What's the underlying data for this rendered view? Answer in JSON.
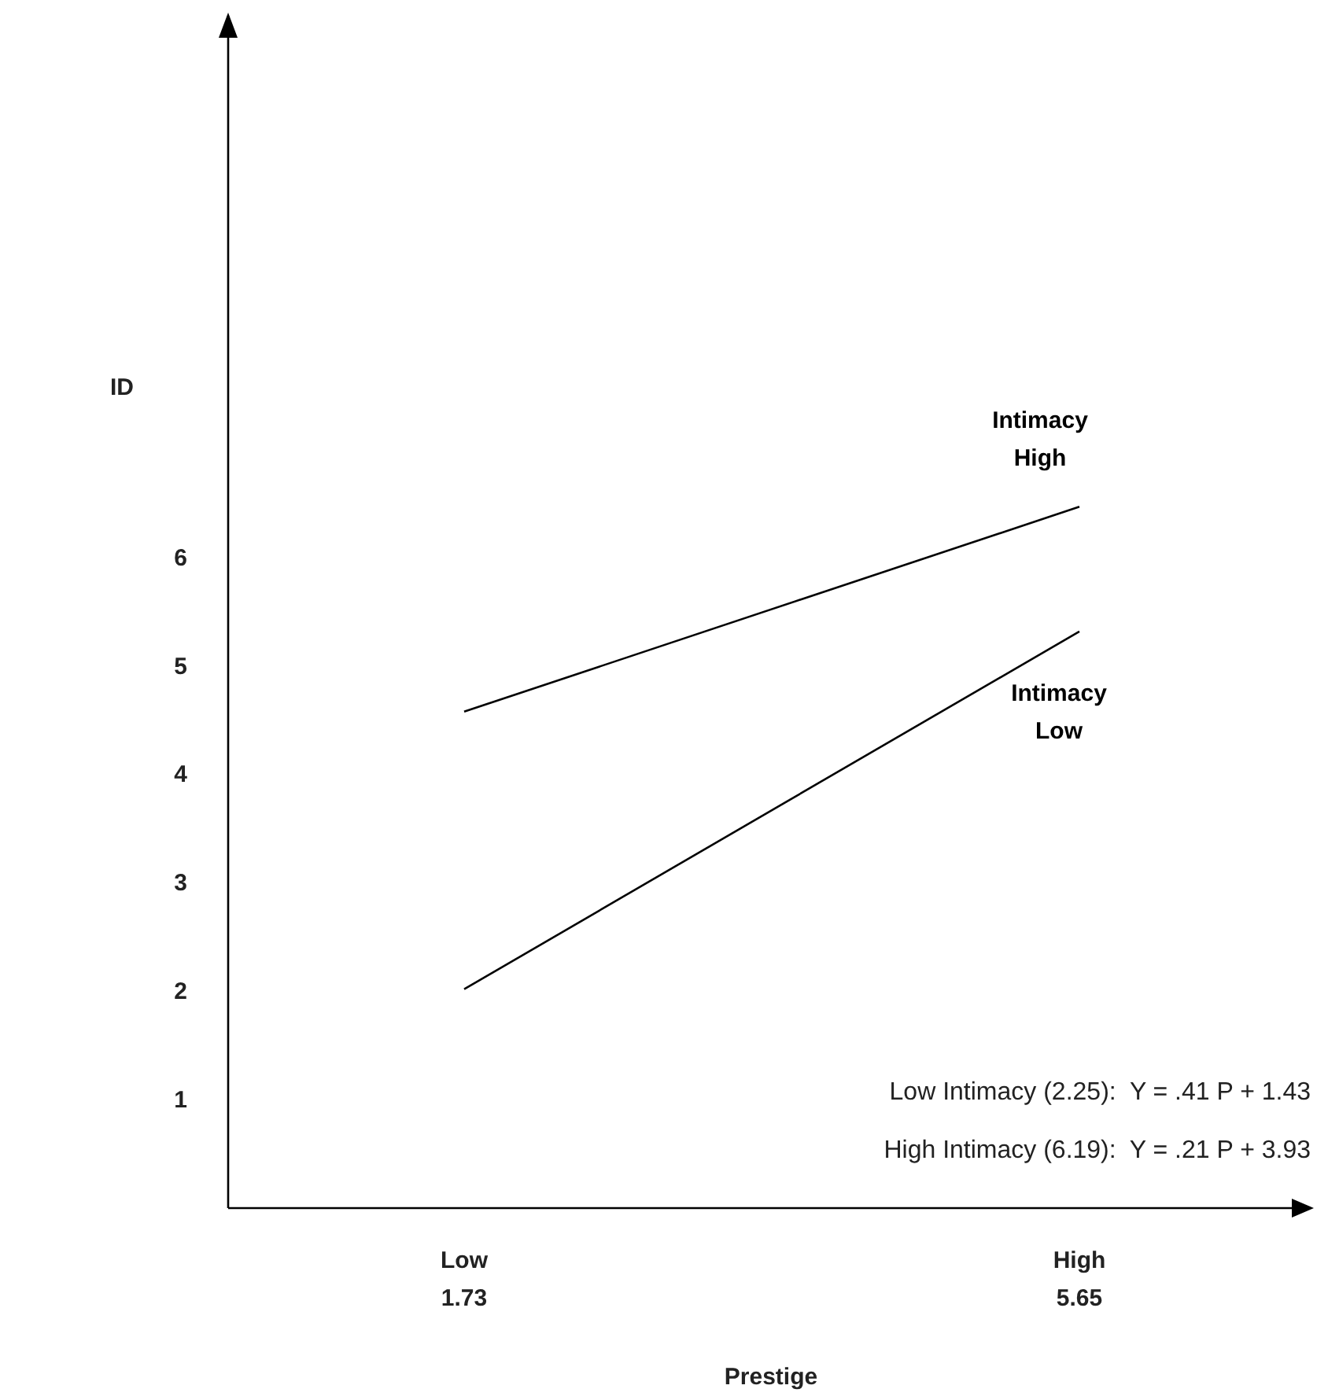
{
  "chart_data": {
    "type": "line",
    "xlabel": "Prestige",
    "ylabel": "ID",
    "categories": [
      "Low\n1.73",
      "High\n5.65"
    ],
    "series": [
      {
        "name": "Intimacy High",
        "color": "#000000",
        "values": [
          4.58,
          6.47
        ]
      },
      {
        "name": "Intimacy Low",
        "color": "#000000",
        "values": [
          2.02,
          5.32
        ]
      }
    ],
    "ylim": [
      0,
      11
    ],
    "yticks": [
      1,
      2,
      3,
      4,
      5,
      6
    ],
    "grid": false,
    "marker": "none",
    "line_style": "solid",
    "annotations": [
      "Low Intimacy (2.25):  Y = .41 P + 1.43",
      "High Intimacy (6.19):  Y = .21 P + 3.93"
    ]
  }
}
